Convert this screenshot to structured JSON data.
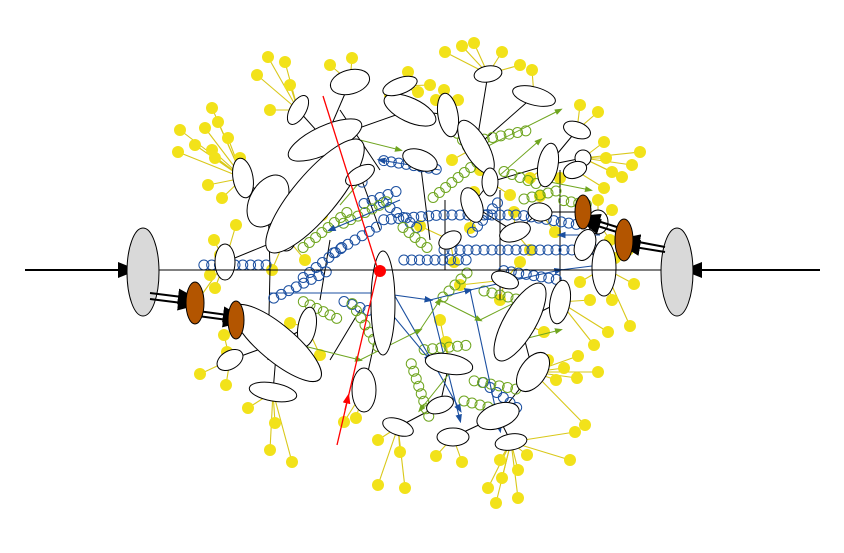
{
  "diagram": {
    "kind": "hadron collision event schematic",
    "colors": {
      "beam_line": "#000000",
      "remnant_blob": "#d9d9d9",
      "hard_vertex": "#ff0000",
      "secondary_line": "#ff0000",
      "gluon": "#1b4fa0",
      "secondary_gluon": "#6fa51f",
      "quark_line": "#1b4fa0",
      "hadron_cluster_fill": "#ffffff",
      "hadron": "#f2e21a",
      "beam_remnant": "#b35500"
    },
    "labels": []
  }
}
